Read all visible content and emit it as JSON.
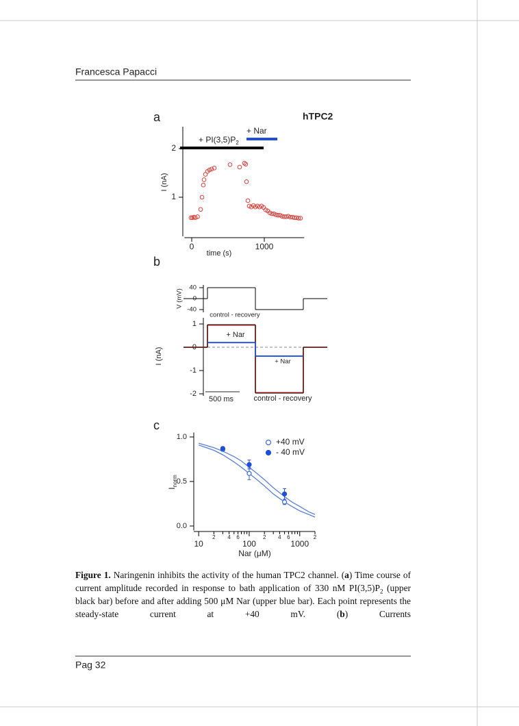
{
  "header": {
    "author": "Francesca Papacci"
  },
  "chart_data": [
    {
      "type": "scatter",
      "letter": "a",
      "title": "hTPC2",
      "xlabel": "time (s)",
      "ylabel": "I (nA)",
      "xlim": [
        -100,
        1550
      ],
      "ylim": [
        0.2,
        2.45
      ],
      "xticks": [
        0,
        1000
      ],
      "yticks": [
        1,
        2
      ],
      "color": "#d9403a",
      "marker": "open",
      "bars": [
        {
          "label": "+ PI(3,5)P",
          "label_sub": "2",
          "start": -160,
          "end": 990,
          "color": "#000000"
        },
        {
          "label": "+ Nar",
          "start": 755,
          "end": 1180,
          "color": "#1f4fd8"
        }
      ],
      "x": [
        -10,
        10,
        30,
        50,
        80,
        123,
        142,
        160,
        170,
        189,
        217,
        245,
        274,
        311,
        528,
        660,
        726,
        745,
        755,
        774,
        792,
        820,
        850,
        877,
        906,
        934,
        962,
        990,
        1019,
        1047,
        1075,
        1104,
        1132,
        1160,
        1189,
        1217,
        1245,
        1274,
        1302,
        1330,
        1358,
        1387,
        1415,
        1443,
        1472,
        1500
      ],
      "values": [
        0.58,
        0.58,
        0.59,
        0.58,
        0.6,
        0.75,
        1.0,
        1.25,
        1.36,
        1.47,
        1.53,
        1.56,
        1.58,
        1.6,
        1.67,
        1.62,
        1.7,
        1.68,
        1.32,
        0.93,
        0.82,
        0.8,
        0.83,
        0.8,
        0.82,
        0.8,
        0.82,
        0.79,
        0.74,
        0.72,
        0.68,
        0.66,
        0.66,
        0.64,
        0.63,
        0.63,
        0.61,
        0.6,
        0.6,
        0.61,
        0.59,
        0.59,
        0.58,
        0.58,
        0.57,
        0.57
      ]
    },
    {
      "type": "trace",
      "letter": "b",
      "xlim": [
        0,
        2100
      ],
      "scalebar": {
        "value": 500,
        "label": "500 ms"
      },
      "voltage": {
        "ylabel": "V (mV)",
        "ylim": [
          -50,
          50
        ],
        "yticks": [
          40,
          0,
          -40
        ],
        "color": "#000000",
        "edges": [
          0,
          350,
          1050,
          1750,
          2100
        ],
        "values": [
          0,
          40,
          -40,
          0
        ]
      },
      "current": {
        "ylabel": "I (nA)",
        "ylim": [
          -2.1,
          1.25
        ],
        "yticks": [
          1,
          0,
          -1,
          -2
        ],
        "series": [
          {
            "color": "#d9403a",
            "edges": [
              0,
              350,
              1050,
              1750,
              2100
            ],
            "values": [
              0,
              0.95,
              -1.95,
              0
            ]
          },
          {
            "color": "#000000",
            "edges": [
              0,
              350,
              1050,
              1750,
              2100
            ],
            "values": [
              0,
              0.97,
              -1.97,
              0
            ]
          },
          {
            "color": "#1f4fd8",
            "edges": [
              350,
              1050,
              1750
            ],
            "values": [
              0.2,
              -0.38
            ]
          }
        ]
      },
      "annotations": [
        "control - recovery",
        "+ Nar",
        "+ Nar",
        "control - recovery"
      ]
    },
    {
      "type": "dose-response",
      "letter": "c",
      "xlabel": "Nar (μM)",
      "ylabel": "I",
      "ylabel_sub": "norm",
      "xscale": "log",
      "xlim": [
        8,
        2000
      ],
      "ylim": [
        -0.05,
        1.05
      ],
      "xticks": [
        10,
        {
          "value": 20,
          "label": "2"
        },
        {
          "value": 40,
          "label": "4"
        },
        {
          "value": 60,
          "label": "6"
        },
        100,
        {
          "value": 200,
          "label": "2"
        },
        {
          "value": 400,
          "label": "4"
        },
        {
          "value": 600,
          "label": "6"
        },
        1000,
        {
          "value": 2000,
          "label": "2"
        }
      ],
      "xminor": [
        30,
        50,
        70,
        80,
        90,
        300,
        500,
        700,
        800,
        900
      ],
      "yticks": [
        {
          "value": 0,
          "label": "0.0"
        },
        {
          "value": 0.5,
          "label": "0.5"
        },
        {
          "value": 1,
          "label": "1.0"
        }
      ],
      "legend": "upper right",
      "series": [
        {
          "name": "+40 mV",
          "marker": "open",
          "color": "#3a66d8",
          "x": [
            30,
            100,
            500
          ],
          "values": [
            0.86,
            0.59,
            0.27
          ],
          "errors": [
            0.02,
            0.07,
            0.03
          ]
        },
        {
          "name": "- 40 mV",
          "marker": "filled",
          "color": "#1f4fd8",
          "x": [
            30,
            100,
            500
          ],
          "values": [
            0.87,
            0.69,
            0.36
          ],
          "errors": [
            0.02,
            0.05,
            0.06
          ]
        }
      ],
      "fits": [
        {
          "color": "#5b7fd8",
          "x": [
            10,
            20,
            30,
            50,
            70,
            100,
            150,
            200,
            300,
            500,
            700,
            1000,
            1500,
            2000
          ],
          "values": [
            0.91,
            0.85,
            0.8,
            0.72,
            0.66,
            0.59,
            0.51,
            0.45,
            0.36,
            0.27,
            0.22,
            0.17,
            0.13,
            0.1
          ]
        },
        {
          "color": "#5b7fd8",
          "x": [
            10,
            20,
            30,
            50,
            70,
            100,
            150,
            200,
            300,
            500,
            700,
            1000,
            1500,
            2000
          ],
          "values": [
            0.93,
            0.88,
            0.84,
            0.78,
            0.73,
            0.66,
            0.58,
            0.52,
            0.43,
            0.33,
            0.27,
            0.22,
            0.16,
            0.13
          ]
        }
      ]
    }
  ],
  "caption": [
    {
      "text": "Figure 1.",
      "style": "bold"
    },
    {
      "text": " Naringenin inhibits the activity of the human TPC2 channel. ("
    },
    {
      "text": "a",
      "style": "bold"
    },
    {
      "text": ") Time course of current amplitude recorded in response to bath application of 330 nM PI(3,5)P"
    },
    {
      "text": "2",
      "style": "sub"
    },
    {
      "text": " (upper black bar) before and after adding 500 μM Nar (upper blue bar). Each point represents the steady-state current at +40 mV. ("
    },
    {
      "text": "b",
      "style": "bold"
    },
    {
      "text": ") Currents"
    }
  ],
  "footer": {
    "page": "Pag 32"
  }
}
